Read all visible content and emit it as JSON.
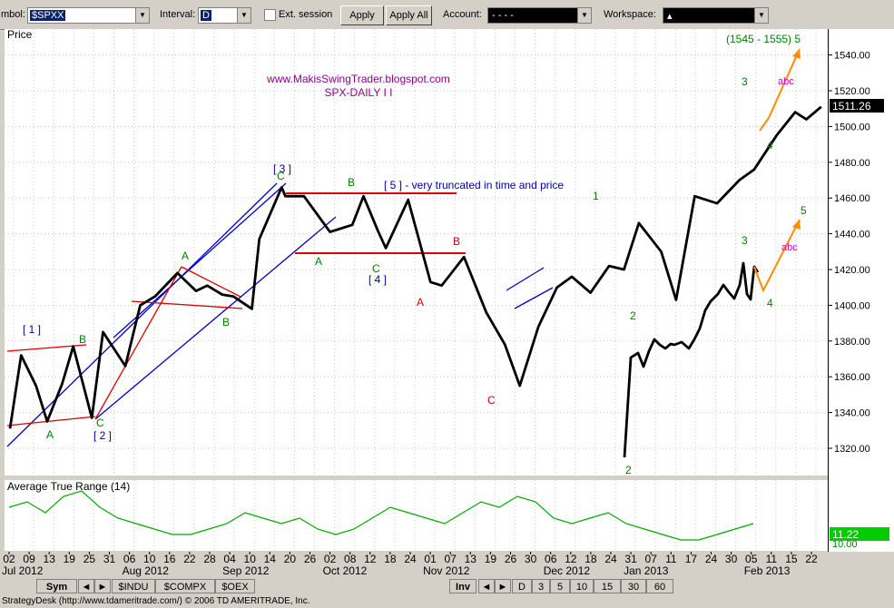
{
  "toolbar": {
    "symbol_label": "mbol:",
    "symbol_value": "$SPXX",
    "interval_label": "Interval:",
    "interval_value": "D",
    "ext_session_label": "Ext. session",
    "apply_label": "Apply",
    "apply_all_label": "Apply All",
    "account_label": "Account:",
    "account_value": "-      -      -      -",
    "workspace_label": "Workspace:",
    "workspace_value": "▴"
  },
  "price_panel": {
    "label": "Price",
    "watermark_url": "www.MakisSwingTrader.blogspot.com",
    "watermark_subtitle": "SPX-DAILY I I",
    "last_price": "1511.26",
    "target_label": "(1545 - 1555) 5",
    "annotation": "[ 5 ] - very truncated in time and price"
  },
  "atr_panel": {
    "label": "Average True Range (14)",
    "last_value": "11.22",
    "cut_value": "10.00"
  },
  "xaxis": {
    "days": [
      "02",
      "09",
      "13",
      "19",
      "25",
      "31",
      "06",
      "10",
      "16",
      "22",
      "28",
      "04",
      "10",
      "14",
      "20",
      "26",
      "02",
      "08",
      "12",
      "18",
      "24",
      "01",
      "07",
      "13",
      "19",
      "26",
      "30",
      "06",
      "12",
      "18",
      "24",
      "31",
      "07",
      "11",
      "17",
      "24",
      "30",
      "05",
      "11",
      "15",
      "22"
    ],
    "months": [
      "Jul 2012",
      "Aug 2012",
      "Sep 2012",
      "Oct 2012",
      "Nov 2012",
      "Dec 2012",
      "Jan 2013",
      "Feb 2013"
    ]
  },
  "tabs": {
    "sym": "Sym",
    "symbols": [
      "$INDU",
      "$COMPX",
      "$OEX"
    ],
    "inv": "Inv",
    "intervals": [
      "D",
      "3",
      "5",
      "10",
      "15",
      "30",
      "60"
    ]
  },
  "status_text": "StrategyDesk (http://www.tdameritrade.com/) © 2006 TD AMERITRADE, Inc.",
  "colors": {
    "price_line": "#000000",
    "channel": "#0000cc",
    "horizontal": "#dd0000",
    "wave_green": "#008000",
    "wave_magenta": "#cc00cc",
    "projection": "#ff8c00",
    "atr_line": "#00aa00",
    "last_price_bg": "#000000",
    "atr_value_bg": "#00cc00"
  },
  "chart_data": [
    {
      "type": "line",
      "title": "SPX-DAILY I I",
      "ylim": [
        1310,
        1560
      ],
      "yticks": [
        1320,
        1340,
        1360,
        1380,
        1400,
        1420,
        1440,
        1460,
        1480,
        1500,
        1520,
        1540
      ],
      "series": [
        {
          "x": [
            "2012-07-02",
            "2012-07-05",
            "2012-07-09",
            "2012-07-12",
            "2012-07-16",
            "2012-07-19",
            "2012-07-24",
            "2012-07-27",
            "2012-08-02",
            "2012-08-06",
            "2012-08-10",
            "2012-08-16",
            "2012-08-21",
            "2012-08-24",
            "2012-08-28",
            "2012-08-31",
            "2012-09-05",
            "2012-09-07",
            "2012-09-13",
            "2012-09-14",
            "2012-09-19",
            "2012-09-26",
            "2012-10-02",
            "2012-10-05",
            "2012-10-09",
            "2012-10-11",
            "2012-10-17",
            "2012-10-23",
            "2012-10-26",
            "2012-11-01",
            "2012-11-07",
            "2012-11-12",
            "2012-11-16",
            "2012-11-21",
            "2012-11-26",
            "2012-11-30",
            "2012-12-05",
            "2012-12-10",
            "2012-12-14",
            "2012-12-18",
            "2012-12-24",
            "2012-12-28",
            "2013-01-02",
            "2013-01-08",
            "2013-01-14",
            "2013-01-18",
            "2013-01-24",
            "2013-01-29",
            "2013-02-01",
            "2013-02-05"
          ],
          "values": [
            1331,
            1372,
            1355,
            1335,
            1356,
            1377,
            1337,
            1385,
            1366,
            1400,
            1405,
            1418,
            1408,
            1411,
            1406,
            1405,
            1398,
            1437,
            1466,
            1461,
            1461,
            1441,
            1445,
            1461,
            1441,
            1432,
            1459,
            1413,
            1411,
            1427,
            1396,
            1378,
            1355,
            1388,
            1410,
            1416,
            1407,
            1422,
            1420,
            1446,
            1430,
            1403,
            1461,
            1457,
            1470,
            1476,
            1495,
            1508,
            1504,
            1511
          ]
        }
      ],
      "annotations": [
        "[ 1 ]",
        "[ 2 ]",
        "[ 3 ]",
        "[ 4 ]",
        "[ 5 ] - very truncated in time and price",
        "(1545 - 1555) 5"
      ]
    },
    {
      "type": "line",
      "title": "Average True Range (14)",
      "series": [
        {
          "values": [
            14,
            15,
            13,
            16,
            17,
            14,
            12,
            11,
            10,
            9,
            9,
            10,
            11,
            13,
            12,
            11,
            12,
            10,
            9,
            10,
            12,
            14,
            13,
            12,
            11,
            13,
            15,
            14,
            16,
            15,
            12,
            11,
            12,
            13,
            11,
            10,
            9,
            8,
            8,
            9,
            10,
            11
          ]
        }
      ],
      "last_value": 11.22
    }
  ]
}
